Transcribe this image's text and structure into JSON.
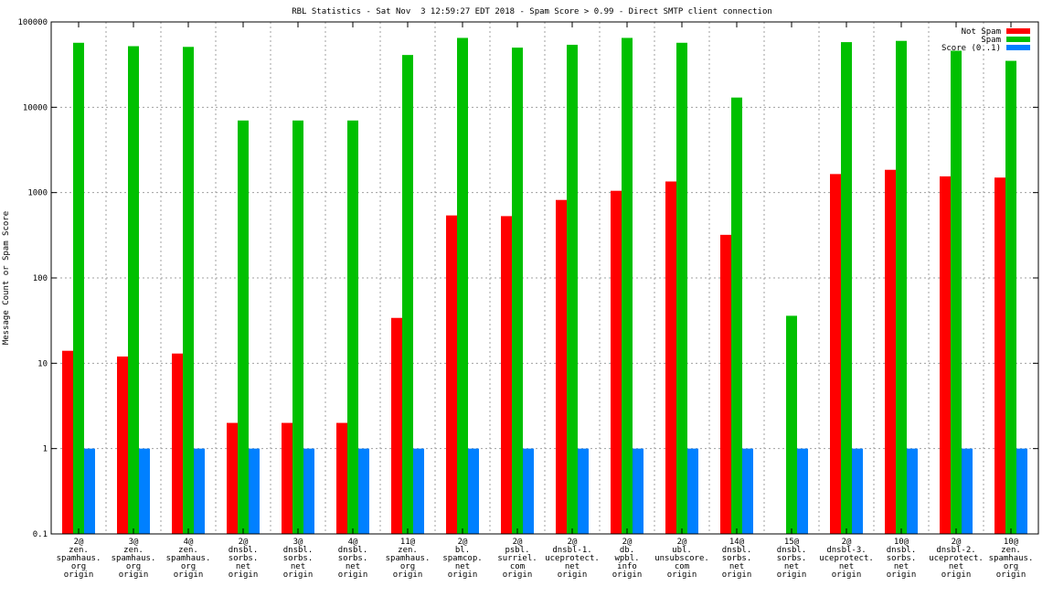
{
  "colors": {
    "not_spam": "#ff0000",
    "spam": "#00c000",
    "score": "#0080ff",
    "grid": "#a0a0a0",
    "axis": "#000000"
  },
  "chart_data": {
    "type": "bar",
    "title": "RBL Statistics - Sat Nov  3 12:59:27 EDT 2018 - Spam Score > 0.99 - Direct SMTP client connection",
    "ylabel": "Message Count or Spam Score",
    "xlabel": "",
    "yscale": "log",
    "ylim": [
      0.1,
      100000
    ],
    "yticks": [
      "0.1",
      "1",
      "10",
      "100",
      "1000",
      "10000",
      "100000"
    ],
    "grid": true,
    "legend_position": "top-right",
    "categories": [
      [
        "2@",
        "zen.",
        "spamhaus.",
        "org",
        "origin"
      ],
      [
        "3@",
        "zen.",
        "spamhaus.",
        "org",
        "origin"
      ],
      [
        "4@",
        "zen.",
        "spamhaus.",
        "org",
        "origin"
      ],
      [
        "2@",
        "dnsbl.",
        "sorbs.",
        "net",
        "origin"
      ],
      [
        "3@",
        "dnsbl.",
        "sorbs.",
        "net",
        "origin"
      ],
      [
        "4@",
        "dnsbl.",
        "sorbs.",
        "net",
        "origin"
      ],
      [
        "11@",
        "zen.",
        "spamhaus.",
        "org",
        "origin"
      ],
      [
        "2@",
        "bl.",
        "spamcop.",
        "net",
        "origin"
      ],
      [
        "2@",
        "psbl.",
        "surriel.",
        "com",
        "origin"
      ],
      [
        "2@",
        "dnsbl-1.",
        "uceprotect.",
        "net",
        "origin"
      ],
      [
        "2@",
        "db.",
        "wpbl.",
        "info",
        "origin"
      ],
      [
        "2@",
        "ubl.",
        "unsubscore.",
        "com",
        "origin"
      ],
      [
        "14@",
        "dnsbl.",
        "sorbs.",
        "net",
        "origin"
      ],
      [
        "15@",
        "dnsbl.",
        "sorbs.",
        "net",
        "origin"
      ],
      [
        "2@",
        "dnsbl-3.",
        "uceprotect.",
        "net",
        "origin"
      ],
      [
        "10@",
        "dnsbl.",
        "sorbs.",
        "net",
        "origin"
      ],
      [
        "2@",
        "dnsbl-2.",
        "uceprotect.",
        "net",
        "origin"
      ],
      [
        "10@",
        "zen.",
        "spamhaus.",
        "org",
        "origin"
      ]
    ],
    "series": [
      {
        "name": "Not Spam",
        "color": "#ff0000",
        "values": [
          14,
          12,
          13,
          2,
          2,
          2,
          34,
          540,
          530,
          820,
          1050,
          1350,
          320,
          null,
          1650,
          1850,
          1550,
          1500
        ]
      },
      {
        "name": "Spam",
        "color": "#00c000",
        "values": [
          57000,
          52000,
          51000,
          7000,
          7000,
          7000,
          41000,
          65000,
          50000,
          54000,
          65000,
          57000,
          13000,
          36,
          58000,
          60000,
          46000,
          35000
        ]
      },
      {
        "name": "Score (0..1)",
        "color": "#0080ff",
        "values": [
          1,
          1,
          1,
          1,
          1,
          1,
          1,
          1,
          1,
          1,
          1,
          1,
          1,
          1,
          1,
          1,
          1,
          1
        ]
      }
    ]
  }
}
